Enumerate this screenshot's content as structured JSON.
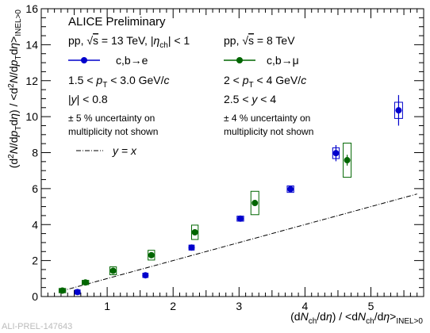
{
  "chart_data": {
    "type": "scatter",
    "title": "ALICE Preliminary",
    "xlabel_parts": [
      "(d",
      "N",
      "ch",
      "/d",
      "η",
      ") / <d",
      "N",
      "ch",
      "/d",
      "η",
      ">",
      "INEL>0"
    ],
    "ylabel_parts": [
      "(d",
      "2",
      "N",
      "/d",
      "p",
      "T",
      "d",
      "η",
      ") / <d",
      "2",
      "N",
      "/d",
      "p",
      "T",
      "d",
      "η",
      ">",
      "INEL>0"
    ],
    "xlim": [
      0,
      5.8
    ],
    "ylim": [
      0,
      16
    ],
    "xticks": [
      "1",
      "2",
      "3",
      "4",
      "5"
    ],
    "yticks": [
      "0",
      "2",
      "4",
      "6",
      "8",
      "10",
      "12",
      "14",
      "16"
    ],
    "identity_line": {
      "label": "y = x",
      "x_range": [
        0.3,
        5.7
      ],
      "color": "#000000"
    },
    "legend_left": {
      "system": "pp, √s = 13 TeV, |η_ch| < 1",
      "system_parts": [
        "pp, ",
        "√",
        "s",
        " = 13 TeV, |",
        "η",
        "ch",
        "| < 1"
      ],
      "series": "c,b→e",
      "pt": "1.5 < p_T < 3.0 GeV/c",
      "pt_parts": [
        "1.5 < ",
        "p",
        "T",
        " < 3.0 GeV/",
        "c"
      ],
      "y": "|y| < 0.8",
      "y_parts": [
        "|",
        "y",
        "| < 0.8"
      ],
      "unc1": "± 5 % uncertainty on",
      "unc2": "multiplicity not shown"
    },
    "legend_right": {
      "system": "pp, √s = 8 TeV",
      "system_parts": [
        "pp, ",
        "√",
        "s",
        " = 8 TeV"
      ],
      "series": "c,b→μ",
      "pt": "2 < p_T < 4 GeV/c",
      "pt_parts": [
        "2 < ",
        "p",
        "T",
        " < 4 GeV/",
        "c"
      ],
      "y": "2.5 < y < 4",
      "y_parts": [
        "2.5 < ",
        "y",
        " < 4"
      ],
      "unc1": "± 4 % uncertainty on",
      "unc2": "multiplicity not shown"
    },
    "series": [
      {
        "name": "c,b→e",
        "color": "#0000cc",
        "points": [
          {
            "x": 0.55,
            "y": 0.25,
            "yerr": 0.05,
            "sys": [
              0.04,
              0.12
            ]
          },
          {
            "x": 1.58,
            "y": 1.18,
            "yerr": 0.07,
            "sys": [
              0.04,
              0.12
            ]
          },
          {
            "x": 2.28,
            "y": 2.72,
            "yerr": 0.08,
            "sys": [
              0.04,
              0.14
            ]
          },
          {
            "x": 3.02,
            "y": 4.33,
            "yerr": 0.1,
            "sys": [
              0.05,
              0.14
            ]
          },
          {
            "x": 3.78,
            "y": 5.97,
            "yerr": 0.15,
            "sys": [
              0.05,
              0.18
            ]
          },
          {
            "x": 4.47,
            "y": 7.97,
            "yerr": 0.45,
            "sys": [
              0.05,
              0.3
            ]
          },
          {
            "x": 5.42,
            "y": 10.35,
            "yerr": 0.85,
            "sys": [
              0.06,
              0.45
            ]
          }
        ]
      },
      {
        "name": "c,b→μ",
        "color": "#006600",
        "points": [
          {
            "x": 0.32,
            "y": 0.33,
            "yerr": 0.05,
            "sys": [
              0.05,
              0.12
            ]
          },
          {
            "x": 0.67,
            "y": 0.78,
            "yerr": 0.05,
            "sys": [
              0.05,
              0.12
            ]
          },
          {
            "x": 1.09,
            "y": 1.43,
            "yerr": 0.06,
            "sys": [
              0.05,
              0.22
            ]
          },
          {
            "x": 1.67,
            "y": 2.3,
            "yerr": 0.06,
            "sys": [
              0.05,
              0.27
            ]
          },
          {
            "x": 2.33,
            "y": 3.57,
            "yerr": 0.08,
            "sys": [
              0.05,
              0.4
            ]
          },
          {
            "x": 3.24,
            "y": 5.2,
            "yerr": 0.1,
            "sys": [
              0.06,
              0.65
            ]
          },
          {
            "x": 4.64,
            "y": 7.58,
            "yerr": 0.3,
            "sys": [
              0.06,
              0.95
            ]
          }
        ]
      }
    ]
  },
  "footer_tag": "ALI-PREL-147643"
}
